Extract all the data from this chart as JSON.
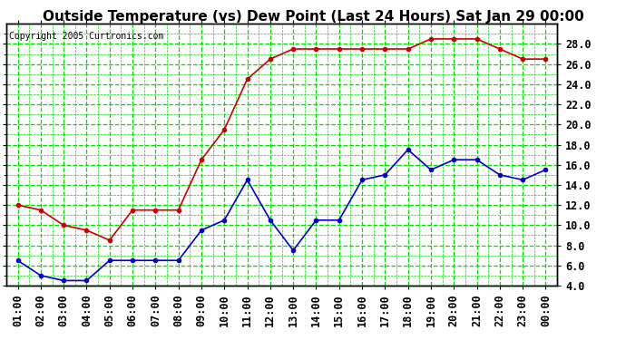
{
  "title": "Outside Temperature (vs) Dew Point (Last 24 Hours) Sat Jan 29 00:00",
  "copyright": "Copyright 2005 Curtronics.com",
  "x_labels": [
    "01:00",
    "02:00",
    "03:00",
    "04:00",
    "05:00",
    "06:00",
    "07:00",
    "08:00",
    "09:00",
    "10:00",
    "11:00",
    "12:00",
    "13:00",
    "14:00",
    "15:00",
    "16:00",
    "17:00",
    "18:00",
    "19:00",
    "20:00",
    "21:00",
    "22:00",
    "23:00",
    "00:00"
  ],
  "temp_data": [
    12.0,
    11.5,
    10.0,
    9.5,
    8.5,
    11.5,
    11.5,
    11.5,
    16.5,
    19.5,
    24.5,
    26.5,
    27.5,
    27.5,
    27.5,
    27.5,
    27.5,
    27.5,
    28.5,
    28.5,
    28.5,
    27.5,
    26.5,
    26.5
  ],
  "dew_data": [
    6.5,
    5.0,
    4.5,
    4.5,
    6.5,
    6.5,
    6.5,
    6.5,
    9.5,
    10.5,
    14.5,
    10.5,
    7.5,
    10.5,
    10.5,
    14.5,
    15.0,
    17.5,
    15.5,
    16.5,
    16.5,
    15.0,
    14.5,
    15.5
  ],
  "temp_color": "#cc0000",
  "dew_color": "#0000cc",
  "bg_color": "#ffffff",
  "plot_bg_color": "#ffffff",
  "grid_color": "#00dd00",
  "ylim": [
    4.0,
    30.0
  ],
  "yticks": [
    4.0,
    6.0,
    8.0,
    10.0,
    12.0,
    14.0,
    16.0,
    18.0,
    20.0,
    22.0,
    24.0,
    26.0,
    28.0
  ],
  "title_fontsize": 11,
  "copyright_fontsize": 7,
  "tick_fontsize": 8.5
}
